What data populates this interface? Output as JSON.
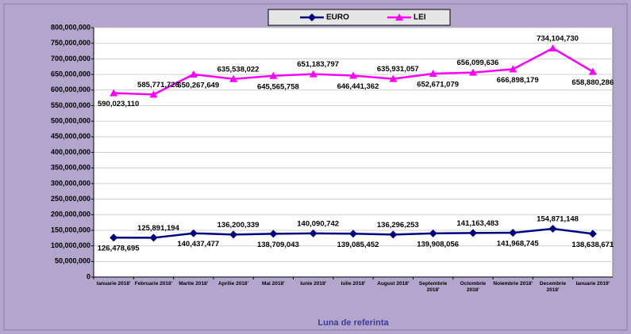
{
  "chart_data": {
    "type": "line",
    "x_label": "Luna de referinta",
    "categories": [
      "Ianuarie 2018'",
      "Februarie 2018'",
      "Martie 2018'",
      "Aprilie 2018'",
      "Mai 2018'",
      "Iunie 2018'",
      "Iulie 2018'",
      "August 2018'",
      "Septembrie 2018'",
      "Octombrie 2018'",
      "Noiembrie 2018'",
      "Decembrie 2018'",
      "Ianuarie 2019'"
    ],
    "series": [
      {
        "name": "EURO",
        "color": "#000080",
        "marker": "diamond",
        "values": [
          126478695,
          125891194,
          140437477,
          136200339,
          138709043,
          140090742,
          139085452,
          136296253,
          139908056,
          141163483,
          141968745,
          154871148,
          138638671
        ],
        "value_labels": [
          "126,478,695",
          "125,891,194",
          "140,437,477",
          "136,200,339",
          "138,709,043",
          "140,090,742",
          "139,085,452",
          "136,296,253",
          "139,908,056",
          "141,163,483",
          "141,968,745",
          "154,871,148",
          "138,638,671"
        ]
      },
      {
        "name": "LEI",
        "color": "#ff00ff",
        "marker": "triangle",
        "values": [
          590023110,
          585771728,
          650267649,
          635538022,
          645565758,
          651183797,
          646441362,
          635931057,
          652671079,
          656099636,
          666898179,
          734104730,
          658880286
        ],
        "value_labels": [
          "590,023,110",
          "585,771,728",
          "650,267,649",
          "635,538,022",
          "645,565,758",
          "651,183,797",
          "646,441,362",
          "635,931,057",
          "652,671,079",
          "656,099,636",
          "666,898,179",
          "734,104,730",
          "658,880,286"
        ]
      }
    ],
    "ylim": [
      0,
      800000000
    ],
    "yticks": [
      0,
      {
        "value": 50000000,
        "label": "50,000,000"
      },
      {
        "value": 100000000,
        "label": "100,000,000"
      },
      {
        "value": 150000000,
        "label": "150,000,000"
      },
      {
        "value": 200000000,
        "label": "200,000,000"
      },
      {
        "value": 250000000,
        "label": "250,000,000"
      },
      {
        "value": 300000000,
        "label": "300,000,000"
      },
      {
        "value": 350000000,
        "label": "350,000,000"
      },
      {
        "value": 400000000,
        "label": "400,000,000"
      },
      {
        "value": 450000000,
        "label": "450,000,000"
      },
      {
        "value": 500000000,
        "label": "500,000,000"
      },
      {
        "value": 550000000,
        "label": "550,000,000"
      },
      {
        "value": 600000000,
        "label": "600,000,000"
      },
      {
        "value": 650000000,
        "label": "650,000,000"
      },
      {
        "value": 700000000,
        "label": "700,000,000"
      },
      {
        "value": 750000000,
        "label": "750,000,000"
      },
      {
        "value": 800000000,
        "label": "800,000,000"
      }
    ],
    "grid": true,
    "legend": "top"
  }
}
